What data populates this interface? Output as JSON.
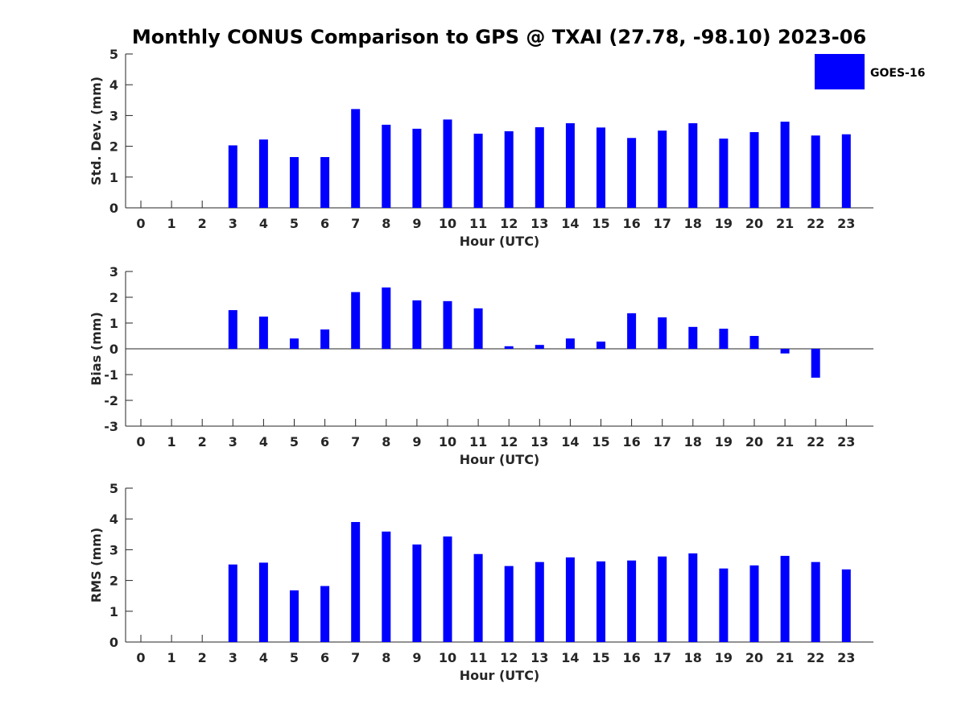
{
  "title": "Monthly CONUS Comparison to GPS @ TXAI (27.78, -98.10) 2023-06",
  "legend": {
    "label": "GOES-16",
    "color": "#0000ff",
    "placement": "top-right"
  },
  "chart_data": [
    {
      "type": "bar",
      "ylabel": "Std. Dev. (mm)",
      "xlabel": "Hour (UTC)",
      "ylim": [
        0,
        5
      ],
      "yticks": [
        0,
        1,
        2,
        3,
        4,
        5
      ],
      "categories": [
        "0",
        "1",
        "2",
        "3",
        "4",
        "5",
        "6",
        "7",
        "8",
        "9",
        "10",
        "11",
        "12",
        "13",
        "14",
        "15",
        "16",
        "17",
        "18",
        "19",
        "20",
        "21",
        "22",
        "23"
      ],
      "series": [
        {
          "name": "GOES-16",
          "values": [
            null,
            null,
            null,
            2.03,
            2.22,
            1.65,
            1.65,
            3.21,
            2.7,
            2.57,
            2.87,
            2.41,
            2.49,
            2.62,
            2.75,
            2.61,
            2.27,
            2.51,
            2.75,
            2.25,
            2.46,
            2.8,
            2.35,
            2.39
          ]
        }
      ]
    },
    {
      "type": "bar",
      "ylabel": "Bias (mm)",
      "xlabel": "Hour (UTC)",
      "ylim": [
        -3,
        3
      ],
      "yticks": [
        -3,
        -2,
        -1,
        0,
        1,
        2,
        3
      ],
      "zero_line": true,
      "categories": [
        "0",
        "1",
        "2",
        "3",
        "4",
        "5",
        "6",
        "7",
        "8",
        "9",
        "10",
        "11",
        "12",
        "13",
        "14",
        "15",
        "16",
        "17",
        "18",
        "19",
        "20",
        "21",
        "22",
        "23"
      ],
      "series": [
        {
          "name": "GOES-16",
          "values": [
            null,
            null,
            null,
            1.5,
            1.25,
            0.4,
            0.75,
            2.2,
            2.38,
            1.88,
            1.85,
            1.57,
            0.1,
            0.15,
            0.4,
            0.28,
            1.38,
            1.22,
            0.85,
            0.78,
            0.5,
            -0.18,
            -1.12,
            null
          ]
        }
      ]
    },
    {
      "type": "bar",
      "ylabel": "RMS (mm)",
      "xlabel": "Hour (UTC)",
      "ylim": [
        0,
        5
      ],
      "yticks": [
        0,
        1,
        2,
        3,
        4,
        5
      ],
      "categories": [
        "0",
        "1",
        "2",
        "3",
        "4",
        "5",
        "6",
        "7",
        "8",
        "9",
        "10",
        "11",
        "12",
        "13",
        "14",
        "15",
        "16",
        "17",
        "18",
        "19",
        "20",
        "21",
        "22",
        "23"
      ],
      "series": [
        {
          "name": "GOES-16",
          "values": [
            null,
            null,
            null,
            2.52,
            2.58,
            1.68,
            1.82,
            3.9,
            3.59,
            3.17,
            3.43,
            2.86,
            2.47,
            2.6,
            2.75,
            2.62,
            2.65,
            2.78,
            2.88,
            2.39,
            2.49,
            2.8,
            2.6,
            2.36
          ]
        }
      ]
    }
  ]
}
